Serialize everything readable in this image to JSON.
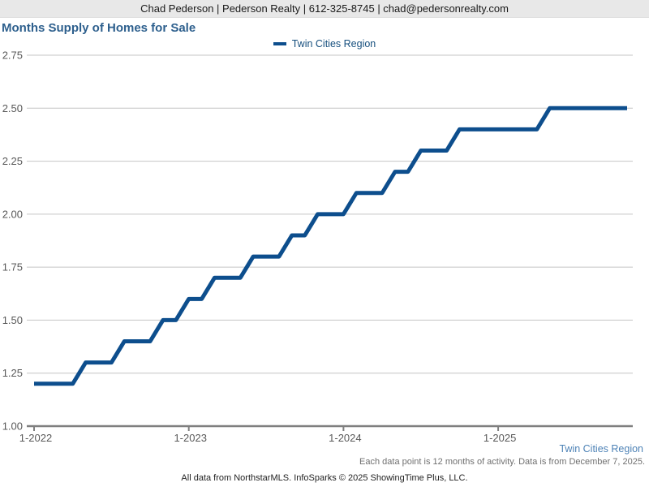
{
  "header": {
    "contact_line": "Chad Pederson | Pederson Realty | 612-325-8745 | chad@pedersonrealty.com"
  },
  "title": "Months Supply of Homes for Sale",
  "legend": {
    "label": "Twin Cities Region",
    "swatch_color": "#0d4e8d"
  },
  "footer": {
    "region_label": "Twin Cities Region",
    "note": "Each data point is 12 months of activity. Data is from December 7, 2025.",
    "credit": "All data from NorthstarMLS. InfoSparks © 2025 ShowingTime Plus, LLC."
  },
  "colors": {
    "line": "#0d4e8d",
    "title_text": "#2d5f8d",
    "legend_text": "#164f7e",
    "gridline": "#c4c4c4",
    "axis": "#7f7f7f",
    "axis_label": "#595959",
    "header_bg": "#e8e8e8",
    "footer_region_text": "#4d82b6",
    "footer_note_text": "#707070"
  },
  "chart_data": {
    "type": "line",
    "title": "Months Supply of Homes for Sale",
    "ylabel": "",
    "xlabel": "",
    "ylim": [
      1.0,
      2.75
    ],
    "ytick_step": 0.25,
    "grid": true,
    "legend_position": "top-center",
    "x": [
      "2022-01",
      "2022-02",
      "2022-03",
      "2022-04",
      "2022-05",
      "2022-06",
      "2022-07",
      "2022-08",
      "2022-09",
      "2022-10",
      "2022-11",
      "2022-12",
      "2023-01",
      "2023-02",
      "2023-03",
      "2023-04",
      "2023-05",
      "2023-06",
      "2023-07",
      "2023-08",
      "2023-09",
      "2023-10",
      "2023-11",
      "2023-12",
      "2024-01",
      "2024-02",
      "2024-03",
      "2024-04",
      "2024-05",
      "2024-06",
      "2024-07",
      "2024-08",
      "2024-09",
      "2024-10",
      "2024-11",
      "2024-12",
      "2025-01",
      "2025-02",
      "2025-03",
      "2025-04",
      "2025-05",
      "2025-06",
      "2025-07",
      "2025-08",
      "2025-09",
      "2025-10",
      "2025-11"
    ],
    "x_ticks": [
      {
        "index": 0,
        "label": "1-2022"
      },
      {
        "index": 12,
        "label": "1-2023"
      },
      {
        "index": 24,
        "label": "1-2024"
      },
      {
        "index": 36,
        "label": "1-2025"
      }
    ],
    "series": [
      {
        "name": "Twin Cities Region",
        "color": "#0d4e8d",
        "values": [
          1.2,
          1.2,
          1.2,
          1.2,
          1.3,
          1.3,
          1.3,
          1.4,
          1.4,
          1.4,
          1.5,
          1.5,
          1.6,
          1.6,
          1.7,
          1.7,
          1.7,
          1.8,
          1.8,
          1.8,
          1.9,
          1.9,
          2.0,
          2.0,
          2.0,
          2.1,
          2.1,
          2.1,
          2.2,
          2.2,
          2.3,
          2.3,
          2.3,
          2.4,
          2.4,
          2.4,
          2.4,
          2.4,
          2.4,
          2.4,
          2.5,
          2.5,
          2.5,
          2.5,
          2.5,
          2.5,
          2.5
        ]
      }
    ]
  }
}
